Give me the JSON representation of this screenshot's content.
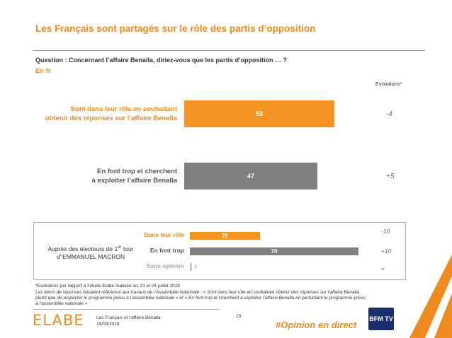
{
  "header": {
    "title": "Les Français sont partagés sur le rôle des partis d’opposition",
    "question": "Question : Concernant l’affaire Benalla, diriez-vous que les partis d’opposition … ?",
    "unit": "En  %",
    "evolutions_header": "Evolutions*"
  },
  "chart_data": [
    {
      "type": "bar",
      "orientation": "horizontal",
      "categories": [
        "Sont dans leur rôle en souhaitant obtenir des réponses sur l’affaire Benalla",
        "En font trop et cherchent à exploiter l’affaire Benalla"
      ],
      "category_lines": [
        [
          "Sont dans leur rôle en souhaitant",
          "obtenir des réponses sur l’affaire Benalla"
        ],
        [
          "En font trop et cherchent",
          "à exploiter l’affaire Benalla"
        ]
      ],
      "values": [
        53,
        47
      ],
      "value_labels": [
        "53",
        "47"
      ],
      "evolutions": [
        "-4",
        "+5"
      ],
      "colors": [
        "#f39422",
        "#7f7f7f"
      ],
      "xlim": [
        0,
        100
      ]
    },
    {
      "type": "bar",
      "orientation": "horizontal",
      "group_label_lines": [
        "Auprès des électeurs de 1er tour",
        "d’’EMMANUEL MACRON"
      ],
      "categories": [
        "Dans leur rôle",
        "En font trop",
        "Sans opinion"
      ],
      "values": [
        29,
        70,
        1
      ],
      "value_labels": [
        "29",
        "70",
        "1"
      ],
      "evolutions": [
        "-10",
        "+10",
        "="
      ],
      "colors": [
        "#f39422",
        "#7f7f7f",
        "#c8c8c8"
      ],
      "xlim": [
        0,
        100
      ]
    }
  ],
  "footnotes": {
    "line1": "*Evolutions par rapport à l’étude Elabe réalisée les 23 et 24 juillet 2018",
    "line2": "Les items de réponses faisaient référence aux travaux de l’Assemblée Nationale : « Sont dans leur rôle en souhaitant obtenir des réponses sur l’affaire Benalla",
    "line3": "plutôt que de respecter le programme prévu à l’assemblée nationale » et « En font trop et cherchent à exploiter l’affaire Benalla en perturbant le programme prévu",
    "line4": "à l’assemblée nationale »"
  },
  "footer": {
    "logo": "ELABE",
    "source_line1": "Les Français et l’affaire Benalla",
    "source_line2": "19/09/2018",
    "page": "15",
    "hashtag": "#Opinion en direct",
    "bfm_logo": "BFM TV",
    "colors": {
      "accent": "#ef8a1e",
      "bfm": "#1b2f6e"
    }
  }
}
